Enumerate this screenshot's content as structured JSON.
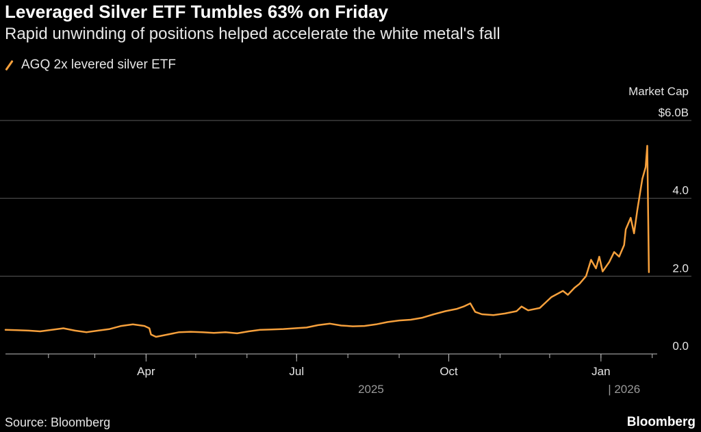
{
  "header": {
    "title": "Leveraged Silver ETF Tumbles 63% on Friday",
    "subtitle": "Rapid unwinding of positions helped accelerate the white metal's fall"
  },
  "footer": {
    "source": "Source: Bloomberg",
    "brand": "Bloomberg"
  },
  "colors": {
    "background": "#000000",
    "series": "#f6a03c",
    "grid": "#5a5a5a",
    "axis": "#bfbfbf"
  },
  "chart_data": {
    "type": "line",
    "title": "Leveraged Silver ETF Tumbles 63% on Friday",
    "subtitle": "Rapid unwinding of positions helped accelerate the white metal's fall",
    "ylabel_lines": [
      "Market Cap"
    ],
    "ylim": [
      0,
      6
    ],
    "y_ticks": [
      {
        "value": 6,
        "label": "$6.0B"
      },
      {
        "value": 4,
        "label": "4.0"
      },
      {
        "value": 2,
        "label": "2.0"
      },
      {
        "value": 0,
        "label": "0.0"
      }
    ],
    "xlim": [
      "2025-01-06",
      "2026-02-04"
    ],
    "x_ticks": [
      {
        "date": "2025-04-01",
        "label": "Apr"
      },
      {
        "date": "2025-07-01",
        "label": "Jul"
      },
      {
        "date": "2025-10-01",
        "label": "Oct"
      },
      {
        "date": "2026-01-01",
        "label": "Jan"
      }
    ],
    "year_labels": [
      {
        "date": "2025-08-15",
        "label": "2025"
      },
      {
        "date": "2026-01-15",
        "label": "| 2026"
      }
    ],
    "grid": true,
    "legend": "top-left",
    "series": [
      {
        "name": "AGQ 2x levered silver ETF",
        "color": "#f6a03c",
        "points": [
          [
            "2025-01-06",
            0.62
          ],
          [
            "2025-01-13",
            0.61
          ],
          [
            "2025-01-20",
            0.6
          ],
          [
            "2025-01-27",
            0.58
          ],
          [
            "2025-02-03",
            0.62
          ],
          [
            "2025-02-10",
            0.66
          ],
          [
            "2025-02-17",
            0.6
          ],
          [
            "2025-02-24",
            0.56
          ],
          [
            "2025-03-03",
            0.6
          ],
          [
            "2025-03-10",
            0.64
          ],
          [
            "2025-03-17",
            0.72
          ],
          [
            "2025-03-24",
            0.76
          ],
          [
            "2025-03-31",
            0.72
          ],
          [
            "2025-04-03",
            0.66
          ],
          [
            "2025-04-04",
            0.5
          ],
          [
            "2025-04-07",
            0.44
          ],
          [
            "2025-04-14",
            0.5
          ],
          [
            "2025-04-21",
            0.56
          ],
          [
            "2025-04-28",
            0.57
          ],
          [
            "2025-05-05",
            0.56
          ],
          [
            "2025-05-12",
            0.54
          ],
          [
            "2025-05-19",
            0.56
          ],
          [
            "2025-05-26",
            0.53
          ],
          [
            "2025-06-02",
            0.58
          ],
          [
            "2025-06-09",
            0.62
          ],
          [
            "2025-06-16",
            0.63
          ],
          [
            "2025-06-23",
            0.64
          ],
          [
            "2025-06-30",
            0.66
          ],
          [
            "2025-07-07",
            0.68
          ],
          [
            "2025-07-14",
            0.74
          ],
          [
            "2025-07-21",
            0.78
          ],
          [
            "2025-07-28",
            0.73
          ],
          [
            "2025-08-04",
            0.71
          ],
          [
            "2025-08-11",
            0.72
          ],
          [
            "2025-08-18",
            0.76
          ],
          [
            "2025-08-25",
            0.82
          ],
          [
            "2025-09-01",
            0.86
          ],
          [
            "2025-09-08",
            0.88
          ],
          [
            "2025-09-15",
            0.93
          ],
          [
            "2025-09-22",
            1.02
          ],
          [
            "2025-09-29",
            1.1
          ],
          [
            "2025-10-06",
            1.16
          ],
          [
            "2025-10-10",
            1.22
          ],
          [
            "2025-10-14",
            1.3
          ],
          [
            "2025-10-17",
            1.08
          ],
          [
            "2025-10-21",
            1.02
          ],
          [
            "2025-10-28",
            1.0
          ],
          [
            "2025-11-04",
            1.04
          ],
          [
            "2025-11-11",
            1.1
          ],
          [
            "2025-11-14",
            1.22
          ],
          [
            "2025-11-18",
            1.12
          ],
          [
            "2025-11-25",
            1.18
          ],
          [
            "2025-12-02",
            1.46
          ],
          [
            "2025-12-09",
            1.62
          ],
          [
            "2025-12-12",
            1.52
          ],
          [
            "2025-12-16",
            1.7
          ],
          [
            "2025-12-19",
            1.8
          ],
          [
            "2025-12-23",
            2.0
          ],
          [
            "2025-12-26",
            2.42
          ],
          [
            "2025-12-29",
            2.2
          ],
          [
            "2025-12-31",
            2.5
          ],
          [
            "2026-01-02",
            2.12
          ],
          [
            "2026-01-06",
            2.36
          ],
          [
            "2026-01-09",
            2.62
          ],
          [
            "2026-01-12",
            2.5
          ],
          [
            "2026-01-15",
            2.8
          ],
          [
            "2026-01-16",
            3.2
          ],
          [
            "2026-01-19",
            3.5
          ],
          [
            "2026-01-21",
            3.1
          ],
          [
            "2026-01-23",
            3.7
          ],
          [
            "2026-01-26",
            4.5
          ],
          [
            "2026-01-28",
            4.8
          ],
          [
            "2026-01-29",
            5.35
          ],
          [
            "2026-01-30",
            2.1
          ]
        ]
      }
    ]
  }
}
